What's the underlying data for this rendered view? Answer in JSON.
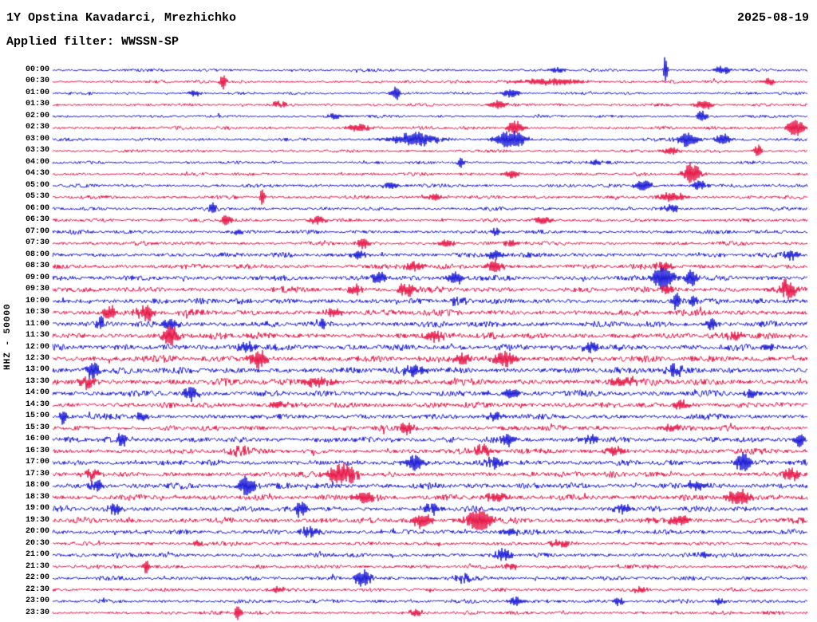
{
  "header": {
    "station_title": "1Y Opstina Kavadarci, Mrezhichko",
    "date": "2025-08-19",
    "filter_label": "Applied filter: WWSSN-SP"
  },
  "chart_data": {
    "type": "line",
    "kind": "helicorder-daily-seismogram",
    "title": "1Y Opstina Kavadarci, Mrezhichko",
    "date": "2025-08-19",
    "filter": "WWSSN-SP",
    "ylabel": "HHZ - 50000",
    "xlabel": "",
    "row_interval_minutes": 30,
    "start_time": "00:00",
    "end_time": "23:30",
    "legend": "none",
    "grid": false,
    "palette": {
      "blue": "#1b1bd6",
      "red": "#e61647"
    },
    "rows": [
      {
        "label": "00:00",
        "color": "blue",
        "noise": 1.6,
        "events": [
          {
            "x": 0.812,
            "a": 26,
            "w": 0.0025
          },
          {
            "x": 0.888,
            "a": 6,
            "w": 0.01
          },
          {
            "x": 0.67,
            "a": 4,
            "w": 0.01
          }
        ]
      },
      {
        "label": "00:30",
        "color": "red",
        "noise": 1.7,
        "events": [
          {
            "x": 0.226,
            "a": 11,
            "w": 0.004
          },
          {
            "x": 0.66,
            "a": 4,
            "w": 0.05
          },
          {
            "x": 0.947,
            "a": 5,
            "w": 0.01
          }
        ]
      },
      {
        "label": "01:00",
        "color": "blue",
        "noise": 1.6,
        "events": [
          {
            "x": 0.455,
            "a": 9,
            "w": 0.006
          },
          {
            "x": 0.607,
            "a": 5,
            "w": 0.012
          },
          {
            "x": 0.188,
            "a": 4,
            "w": 0.008
          }
        ]
      },
      {
        "label": "01:30",
        "color": "red",
        "noise": 1.7,
        "events": [
          {
            "x": 0.591,
            "a": 6,
            "w": 0.01
          },
          {
            "x": 0.862,
            "a": 6,
            "w": 0.012
          },
          {
            "x": 0.299,
            "a": 4,
            "w": 0.01
          }
        ]
      },
      {
        "label": "02:00",
        "color": "blue",
        "noise": 1.6,
        "events": [
          {
            "x": 0.86,
            "a": 8,
            "w": 0.006
          },
          {
            "x": 0.374,
            "a": 4,
            "w": 0.01
          }
        ]
      },
      {
        "label": "02:30",
        "color": "red",
        "noise": 1.8,
        "events": [
          {
            "x": 0.612,
            "a": 10,
            "w": 0.01
          },
          {
            "x": 0.984,
            "a": 11,
            "w": 0.012
          },
          {
            "x": 0.405,
            "a": 5,
            "w": 0.015
          }
        ]
      },
      {
        "label": "03:00",
        "color": "blue",
        "noise": 1.8,
        "events": [
          {
            "x": 0.48,
            "a": 9,
            "w": 0.03
          },
          {
            "x": 0.607,
            "a": 11,
            "w": 0.02
          },
          {
            "x": 0.841,
            "a": 9,
            "w": 0.015
          },
          {
            "x": 0.888,
            "a": 7,
            "w": 0.01
          }
        ]
      },
      {
        "label": "03:30",
        "color": "red",
        "noise": 1.7,
        "events": [
          {
            "x": 0.934,
            "a": 9,
            "w": 0.005
          },
          {
            "x": 0.819,
            "a": 5,
            "w": 0.01
          }
        ]
      },
      {
        "label": "04:00",
        "color": "blue",
        "noise": 1.7,
        "events": [
          {
            "x": 0.541,
            "a": 8,
            "w": 0.004
          },
          {
            "x": 0.719,
            "a": 4,
            "w": 0.01
          }
        ]
      },
      {
        "label": "04:30",
        "color": "red",
        "noise": 1.8,
        "events": [
          {
            "x": 0.847,
            "a": 13,
            "w": 0.012
          },
          {
            "x": 0.607,
            "a": 5,
            "w": 0.01
          }
        ]
      },
      {
        "label": "05:00",
        "color": "blue",
        "noise": 2.0,
        "events": [
          {
            "x": 0.782,
            "a": 7,
            "w": 0.012
          },
          {
            "x": 0.857,
            "a": 6,
            "w": 0.01
          },
          {
            "x": 0.448,
            "a": 4,
            "w": 0.012
          }
        ]
      },
      {
        "label": "05:30",
        "color": "red",
        "noise": 2.0,
        "events": [
          {
            "x": 0.278,
            "a": 13,
            "w": 0.003
          },
          {
            "x": 0.819,
            "a": 6,
            "w": 0.015
          },
          {
            "x": 0.506,
            "a": 5,
            "w": 0.01
          }
        ]
      },
      {
        "label": "06:00",
        "color": "blue",
        "noise": 2.0,
        "events": [
          {
            "x": 0.212,
            "a": 8,
            "w": 0.005
          },
          {
            "x": 0.819,
            "a": 5,
            "w": 0.01
          }
        ]
      },
      {
        "label": "06:30",
        "color": "red",
        "noise": 2.0,
        "events": [
          {
            "x": 0.23,
            "a": 9,
            "w": 0.006
          },
          {
            "x": 0.352,
            "a": 6,
            "w": 0.01
          },
          {
            "x": 0.65,
            "a": 5,
            "w": 0.012
          }
        ]
      },
      {
        "label": "07:00",
        "color": "blue",
        "noise": 2.2,
        "events": [
          {
            "x": 0.586,
            "a": 4,
            "w": 0.01
          },
          {
            "x": 0.246,
            "a": 4,
            "w": 0.008
          }
        ]
      },
      {
        "label": "07:30",
        "color": "red",
        "noise": 2.2,
        "events": [
          {
            "x": 0.411,
            "a": 7,
            "w": 0.008
          },
          {
            "x": 0.522,
            "a": 6,
            "w": 0.01
          },
          {
            "x": 0.607,
            "a": 5,
            "w": 0.008
          }
        ]
      },
      {
        "label": "08:00",
        "color": "blue",
        "noise": 2.6,
        "events": [
          {
            "x": 0.586,
            "a": 7,
            "w": 0.01
          },
          {
            "x": 0.979,
            "a": 7,
            "w": 0.01
          },
          {
            "x": 0.405,
            "a": 5,
            "w": 0.012
          }
        ]
      },
      {
        "label": "08:30",
        "color": "red",
        "noise": 2.8,
        "events": [
          {
            "x": 0.586,
            "a": 7,
            "w": 0.012
          },
          {
            "x": 0.48,
            "a": 6,
            "w": 0.015
          },
          {
            "x": 0.809,
            "a": 6,
            "w": 0.012
          }
        ]
      },
      {
        "label": "09:00",
        "color": "blue",
        "noise": 3.0,
        "events": [
          {
            "x": 0.809,
            "a": 17,
            "w": 0.014
          },
          {
            "x": 0.846,
            "a": 10,
            "w": 0.008
          },
          {
            "x": 0.432,
            "a": 8,
            "w": 0.01
          },
          {
            "x": 0.533,
            "a": 7,
            "w": 0.012
          }
        ]
      },
      {
        "label": "09:30",
        "color": "red",
        "noise": 3.2,
        "events": [
          {
            "x": 0.973,
            "a": 11,
            "w": 0.012
          },
          {
            "x": 0.469,
            "a": 8,
            "w": 0.012
          },
          {
            "x": 0.4,
            "a": 7,
            "w": 0.01
          },
          {
            "x": 0.814,
            "a": 7,
            "w": 0.01
          }
        ]
      },
      {
        "label": "10:00",
        "color": "blue",
        "noise": 3.2,
        "events": [
          {
            "x": 0.825,
            "a": 9,
            "w": 0.008
          },
          {
            "x": 0.849,
            "a": 8,
            "w": 0.006
          },
          {
            "x": 0.538,
            "a": 6,
            "w": 0.01
          }
        ]
      },
      {
        "label": "10:30",
        "color": "red",
        "noise": 3.4,
        "events": [
          {
            "x": 0.076,
            "a": 10,
            "w": 0.008
          },
          {
            "x": 0.124,
            "a": 11,
            "w": 0.012
          },
          {
            "x": 0.374,
            "a": 6,
            "w": 0.012
          }
        ]
      },
      {
        "label": "11:00",
        "color": "blue",
        "noise": 3.4,
        "events": [
          {
            "x": 0.064,
            "a": 11,
            "w": 0.005
          },
          {
            "x": 0.156,
            "a": 8,
            "w": 0.01
          },
          {
            "x": 0.358,
            "a": 6,
            "w": 0.01
          },
          {
            "x": 0.872,
            "a": 7,
            "w": 0.008
          }
        ]
      },
      {
        "label": "11:30",
        "color": "red",
        "noise": 3.6,
        "events": [
          {
            "x": 0.156,
            "a": 13,
            "w": 0.01
          },
          {
            "x": 0.506,
            "a": 7,
            "w": 0.012
          },
          {
            "x": 0.904,
            "a": 6,
            "w": 0.01
          }
        ]
      },
      {
        "label": "12:00",
        "color": "blue",
        "noise": 3.6,
        "events": [
          {
            "x": 0.257,
            "a": 6,
            "w": 0.012
          },
          {
            "x": 0.713,
            "a": 6,
            "w": 0.012
          },
          {
            "x": 0.947,
            "a": 5,
            "w": 0.01
          }
        ]
      },
      {
        "label": "12:30",
        "color": "red",
        "noise": 3.6,
        "events": [
          {
            "x": 0.273,
            "a": 11,
            "w": 0.012
          },
          {
            "x": 0.597,
            "a": 9,
            "w": 0.015
          },
          {
            "x": 0.543,
            "a": 7,
            "w": 0.01
          }
        ]
      },
      {
        "label": "13:00",
        "color": "blue",
        "noise": 3.8,
        "events": [
          {
            "x": 0.053,
            "a": 13,
            "w": 0.008
          },
          {
            "x": 0.825,
            "a": 8,
            "w": 0.012
          },
          {
            "x": 0.48,
            "a": 6,
            "w": 0.015
          }
        ]
      },
      {
        "label": "13:30",
        "color": "red",
        "noise": 3.8,
        "events": [
          {
            "x": 0.045,
            "a": 8,
            "w": 0.01
          },
          {
            "x": 0.352,
            "a": 6,
            "w": 0.02
          },
          {
            "x": 0.756,
            "a": 6,
            "w": 0.02
          }
        ]
      },
      {
        "label": "14:00",
        "color": "blue",
        "noise": 3.4,
        "events": [
          {
            "x": 0.183,
            "a": 9,
            "w": 0.01
          },
          {
            "x": 0.607,
            "a": 8,
            "w": 0.01
          },
          {
            "x": 0.926,
            "a": 5,
            "w": 0.01
          }
        ]
      },
      {
        "label": "14:30",
        "color": "red",
        "noise": 3.2,
        "events": [
          {
            "x": 0.835,
            "a": 6,
            "w": 0.012
          },
          {
            "x": 0.299,
            "a": 5,
            "w": 0.015
          }
        ]
      },
      {
        "label": "15:00",
        "color": "blue",
        "noise": 3.0,
        "events": [
          {
            "x": 0.013,
            "a": 9,
            "w": 0.005
          },
          {
            "x": 0.117,
            "a": 7,
            "w": 0.008
          },
          {
            "x": 0.586,
            "a": 5,
            "w": 0.012
          }
        ]
      },
      {
        "label": "15:30",
        "color": "red",
        "noise": 3.0,
        "events": [
          {
            "x": 0.469,
            "a": 7,
            "w": 0.01
          },
          {
            "x": 0.819,
            "a": 5,
            "w": 0.012
          }
        ]
      },
      {
        "label": "16:00",
        "color": "blue",
        "noise": 3.2,
        "events": [
          {
            "x": 0.092,
            "a": 9,
            "w": 0.006
          },
          {
            "x": 0.602,
            "a": 9,
            "w": 0.01
          },
          {
            "x": 0.713,
            "a": 6,
            "w": 0.01
          },
          {
            "x": 0.989,
            "a": 9,
            "w": 0.006
          }
        ]
      },
      {
        "label": "16:30",
        "color": "red",
        "noise": 3.2,
        "events": [
          {
            "x": 0.57,
            "a": 7,
            "w": 0.012
          },
          {
            "x": 0.745,
            "a": 6,
            "w": 0.012
          },
          {
            "x": 0.246,
            "a": 5,
            "w": 0.015
          }
        ]
      },
      {
        "label": "17:00",
        "color": "blue",
        "noise": 3.2,
        "events": [
          {
            "x": 0.48,
            "a": 11,
            "w": 0.012
          },
          {
            "x": 0.915,
            "a": 13,
            "w": 0.01
          },
          {
            "x": 0.586,
            "a": 7,
            "w": 0.012
          }
        ]
      },
      {
        "label": "17:30",
        "color": "red",
        "noise": 3.2,
        "events": [
          {
            "x": 0.384,
            "a": 13,
            "w": 0.02
          },
          {
            "x": 0.979,
            "a": 7,
            "w": 0.01
          },
          {
            "x": 0.055,
            "a": 6,
            "w": 0.01
          }
        ]
      },
      {
        "label": "18:00",
        "color": "blue",
        "noise": 3.4,
        "events": [
          {
            "x": 0.257,
            "a": 13,
            "w": 0.012
          },
          {
            "x": 0.057,
            "a": 9,
            "w": 0.008
          },
          {
            "x": 0.851,
            "a": 6,
            "w": 0.015
          }
        ]
      },
      {
        "label": "18:30",
        "color": "red",
        "noise": 3.2,
        "events": [
          {
            "x": 0.91,
            "a": 11,
            "w": 0.015
          },
          {
            "x": 0.416,
            "a": 6,
            "w": 0.02
          },
          {
            "x": 0.586,
            "a": 6,
            "w": 0.015
          }
        ]
      },
      {
        "label": "19:00",
        "color": "blue",
        "noise": 3.2,
        "events": [
          {
            "x": 0.329,
            "a": 10,
            "w": 0.008
          },
          {
            "x": 0.082,
            "a": 7,
            "w": 0.01
          },
          {
            "x": 0.501,
            "a": 7,
            "w": 0.012
          },
          {
            "x": 0.756,
            "a": 6,
            "w": 0.012
          }
        ]
      },
      {
        "label": "19:30",
        "color": "red",
        "noise": 3.2,
        "events": [
          {
            "x": 0.49,
            "a": 10,
            "w": 0.012
          },
          {
            "x": 0.565,
            "a": 13,
            "w": 0.018
          },
          {
            "x": 0.83,
            "a": 6,
            "w": 0.015
          }
        ]
      },
      {
        "label": "20:00",
        "color": "blue",
        "noise": 2.8,
        "events": [
          {
            "x": 0.342,
            "a": 6,
            "w": 0.015
          },
          {
            "x": 0.607,
            "a": 5,
            "w": 0.012
          }
        ]
      },
      {
        "label": "20:30",
        "color": "red",
        "noise": 2.2,
        "events": [
          {
            "x": 0.193,
            "a": 4,
            "w": 0.012
          },
          {
            "x": 0.671,
            "a": 4,
            "w": 0.015
          }
        ]
      },
      {
        "label": "21:00",
        "color": "blue",
        "noise": 2.4,
        "events": [
          {
            "x": 0.597,
            "a": 8,
            "w": 0.01
          },
          {
            "x": 0.862,
            "a": 4,
            "w": 0.01
          }
        ]
      },
      {
        "label": "21:30",
        "color": "red",
        "noise": 2.2,
        "events": [
          {
            "x": 0.124,
            "a": 10,
            "w": 0.004
          },
          {
            "x": 0.607,
            "a": 4,
            "w": 0.012
          }
        ]
      },
      {
        "label": "22:00",
        "color": "blue",
        "noise": 2.4,
        "events": [
          {
            "x": 0.411,
            "a": 11,
            "w": 0.012
          },
          {
            "x": 0.543,
            "a": 5,
            "w": 0.012
          }
        ]
      },
      {
        "label": "22:30",
        "color": "red",
        "noise": 2.0,
        "events": [
          {
            "x": 0.299,
            "a": 4,
            "w": 0.012
          },
          {
            "x": 0.777,
            "a": 4,
            "w": 0.012
          }
        ]
      },
      {
        "label": "23:00",
        "color": "blue",
        "noise": 2.2,
        "events": [
          {
            "x": 0.612,
            "a": 6,
            "w": 0.008
          },
          {
            "x": 0.75,
            "a": 6,
            "w": 0.008
          },
          {
            "x": 0.883,
            "a": 4,
            "w": 0.01
          }
        ]
      },
      {
        "label": "23:30",
        "color": "red",
        "noise": 2.0,
        "events": [
          {
            "x": 0.246,
            "a": 10,
            "w": 0.005
          },
          {
            "x": 0.48,
            "a": 4,
            "w": 0.012
          }
        ]
      }
    ]
  }
}
